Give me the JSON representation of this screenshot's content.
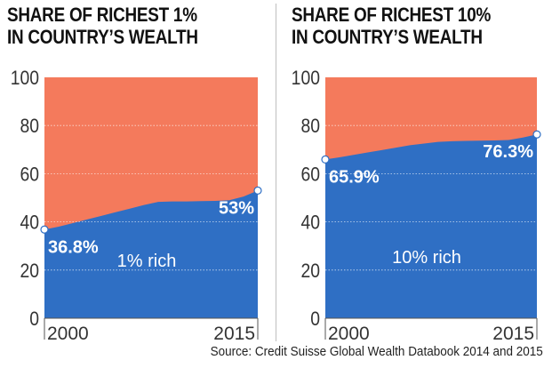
{
  "chart_data": [
    {
      "type": "area",
      "title": [
        "SHARE OF RICHEST 1%",
        "IN COUNTRY’S WEALTH"
      ],
      "ylim": [
        0,
        100
      ],
      "yticks": [
        0,
        20,
        40,
        60,
        80,
        100
      ],
      "xlim": [
        2000,
        2015
      ],
      "xtick_labels": [
        "2000",
        "2015"
      ],
      "grid": true,
      "series": [
        {
          "name": "1% rich",
          "color": "#2f6fc4",
          "x": [
            2000,
            2001,
            2002,
            2003,
            2004,
            2005,
            2006,
            2007,
            2008,
            2009,
            2010,
            2011,
            2012,
            2013,
            2014,
            2015
          ],
          "values": [
            36.8,
            38.0,
            39.5,
            41.0,
            42.5,
            44.0,
            45.5,
            47.0,
            48.3,
            48.5,
            48.5,
            48.6,
            48.7,
            49.0,
            50.5,
            53.0
          ]
        }
      ],
      "remainder_color": "#f47a5c",
      "annotations": [
        {
          "x": 2000,
          "y": 36.8,
          "text": "36.8%",
          "color": "#ffffff"
        },
        {
          "x": 2015,
          "y": 53.0,
          "text": "53%",
          "color": "#ffffff"
        }
      ],
      "inner_label": "1% rich"
    },
    {
      "type": "area",
      "title": [
        "SHARE OF RICHEST 10%",
        "IN COUNTRY’S WEALTH"
      ],
      "ylim": [
        0,
        100
      ],
      "yticks": [
        0,
        20,
        40,
        60,
        80,
        100
      ],
      "xlim": [
        2000,
        2015
      ],
      "xtick_labels": [
        "2000",
        "2015"
      ],
      "grid": true,
      "series": [
        {
          "name": "10% rich",
          "color": "#2f6fc4",
          "x": [
            2000,
            2001,
            2002,
            2003,
            2004,
            2005,
            2006,
            2007,
            2008,
            2009,
            2010,
            2011,
            2012,
            2013,
            2014,
            2015
          ],
          "values": [
            65.9,
            66.8,
            67.8,
            68.8,
            69.8,
            70.8,
            71.8,
            72.5,
            73.2,
            73.5,
            73.6,
            73.7,
            73.8,
            74.0,
            75.0,
            76.3
          ]
        }
      ],
      "remainder_color": "#f47a5c",
      "annotations": [
        {
          "x": 2000,
          "y": 65.9,
          "text": "65.9%",
          "color": "#ffffff"
        },
        {
          "x": 2015,
          "y": 76.3,
          "text": "76.3%",
          "color": "#ffffff"
        }
      ],
      "inner_label": "10% rich"
    }
  ],
  "source": "Source: Credit Suisse Global Wealth Databook 2014 and 2015"
}
